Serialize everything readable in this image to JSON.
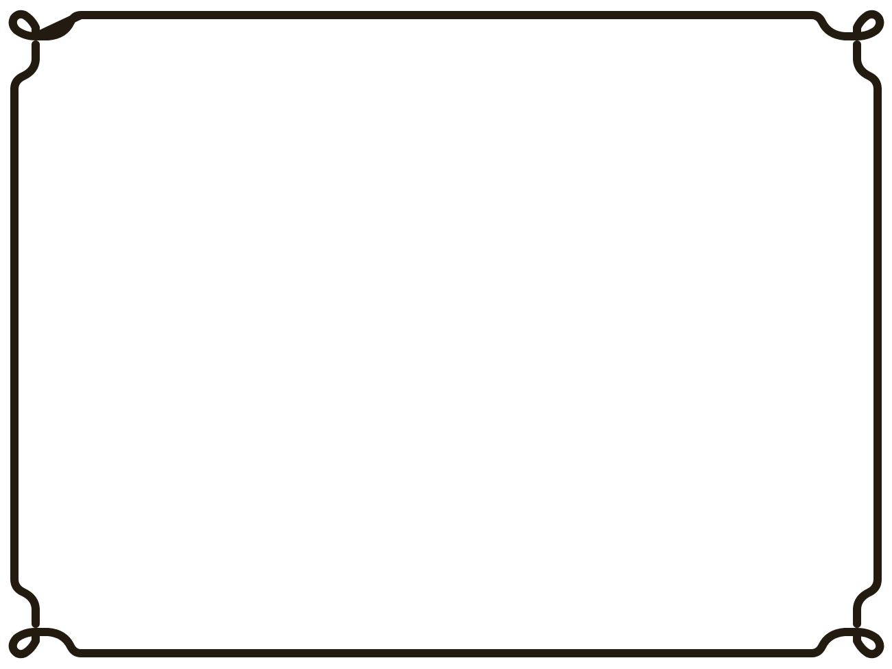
{
  "frame": {
    "style": "ornamental-border",
    "stroke_color": "#231a10",
    "background_color": "#ffffff",
    "corner_ornament": "curl"
  }
}
